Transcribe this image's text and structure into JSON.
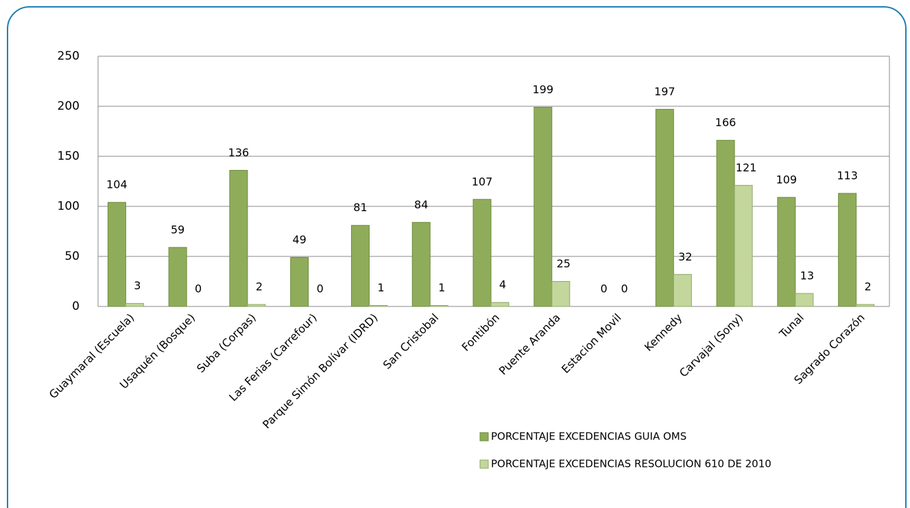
{
  "chart_data": {
    "type": "bar",
    "categories": [
      "Guaymaral (Escuela)",
      "Usaquén (Bosque)",
      "Suba (Corpas)",
      "Las Ferias (Carrefour)",
      "Parque Simón Bolívar (IDRD)",
      "San Cristobal",
      "Fontibón",
      "Puente Aranda",
      "Estacion Movil",
      "Kennedy",
      "Carvajal  (Sony)",
      "Tunal",
      "Sagrado Corazón"
    ],
    "series": [
      {
        "name": "PORCENTAJE EXCEDENCIAS GUIA OMS",
        "color": "#8fac5a",
        "values": [
          104,
          59,
          136,
          49,
          81,
          84,
          107,
          199,
          0,
          197,
          166,
          109,
          113
        ]
      },
      {
        "name": "PORCENTAJE EXCEDENCIAS RESOLUCION 610 DE 2010",
        "color": "#c3d69b",
        "values": [
          3,
          0,
          2,
          0,
          1,
          1,
          4,
          25,
          0,
          32,
          121,
          13,
          2
        ]
      }
    ],
    "ylim": [
      0,
      250
    ],
    "yticks": [
      0,
      50,
      100,
      150,
      200,
      250
    ],
    "grid": true
  }
}
